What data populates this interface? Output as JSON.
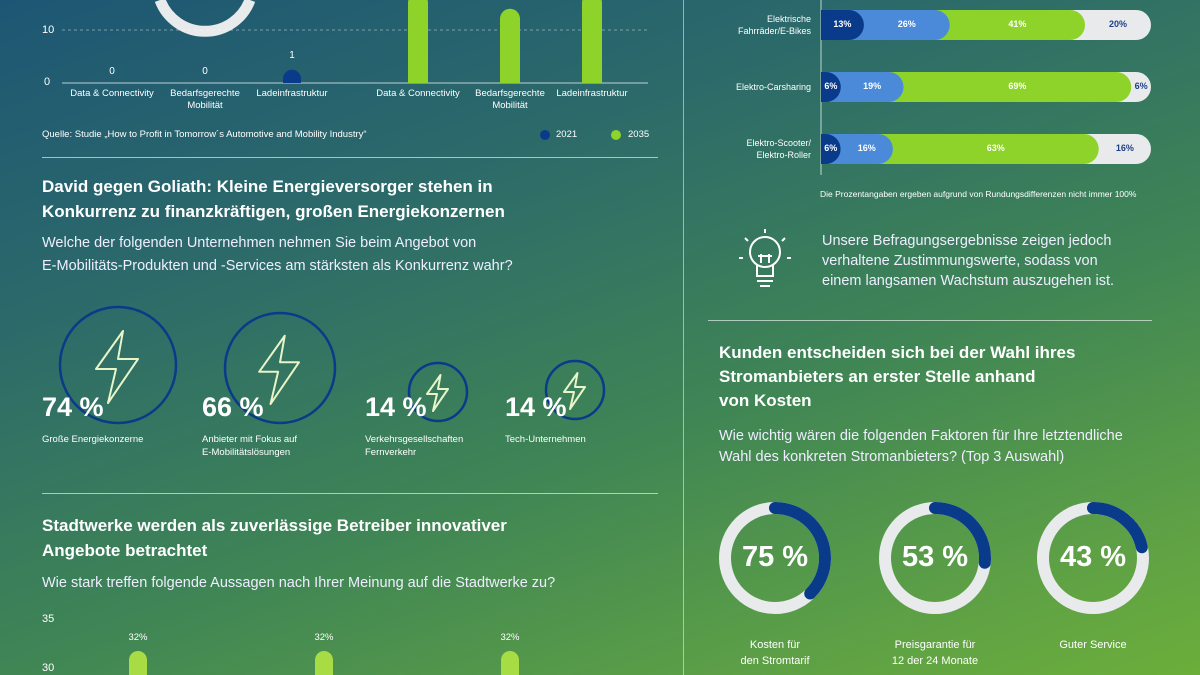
{
  "colors": {
    "dark_blue": "#0a3a8a",
    "mid_blue": "#4a8ad8",
    "green": "#8ed32a",
    "light": "#e8eaec",
    "year_2021": "#0a3a8a",
    "year_2035": "#8ed32a"
  },
  "top_chart": {
    "source": "Quelle: Studie „How to Profit in Tomorrow´s Automotive and Mobility Industry“",
    "legend": [
      "2021",
      "2035"
    ]
  },
  "section1": {
    "title_lines": [
      "David gegen Goliath: Kleine Energieversorger stehen in",
      "Konkurrenz zu finanzkräftigen, großen Energiekonzernen"
    ],
    "question_lines": [
      "Welche der folgenden Unternehmen nehmen Sie beim Angebot von",
      "E-Mobilitäts-Produkten und -Services am stärksten als Konkurrenz wahr?"
    ],
    "items": [
      {
        "value": "74 %",
        "label": [
          "Große Energiekonzerne"
        ],
        "icon": "lightning-icon"
      },
      {
        "value": "66 %",
        "label": [
          "Anbieter mit Fokus auf",
          "E-Mobilitätslösungen"
        ],
        "icon": "lightning-icon"
      },
      {
        "value": "14 %",
        "label": [
          "Verkehrsgesellschaften",
          "Fernverkehr"
        ],
        "icon": "lightning-icon"
      },
      {
        "value": "14 %",
        "label": [
          "Tech-Unternehmen"
        ],
        "icon": "lightning-icon"
      }
    ]
  },
  "section2": {
    "title_lines": [
      "Stadtwerke werden als zuverlässige Betreiber innovativer",
      "Angebote betrachtet"
    ],
    "question": "Wie stark treffen folgende Aussagen nach Ihrer Meinung auf die Stadtwerke zu?"
  },
  "right": {
    "note": "Die Prozentangaben ergeben aufgrund von Rundungsdifferenzen nicht immer 100%",
    "insight_lines": [
      "Unsere Befragungsergebnisse zeigen jedoch",
      "verhaltene Zustimmungswerte, sodass von",
      "einem langsamen Wachstum auszugehen ist."
    ],
    "insight_icon": "lightbulb-icon",
    "section3": {
      "title_lines": [
        "Kunden entscheiden sich bei der Wahl ihres",
        "Stromanbieters an erster Stelle anhand",
        "von Kosten"
      ],
      "question_lines": [
        "Wie wichtig wären die folgenden Faktoren für Ihre letztendliche",
        "Wahl des konkreten Stromanbieters? (Top 3 Auswahl)"
      ]
    }
  },
  "chart_data": [
    {
      "type": "bar",
      "yticks": [
        0,
        10
      ],
      "grid": true,
      "legend": "bottom-right",
      "categories": [
        "Data & Connectivity",
        "Bedarfsgerechte Mobilität",
        "Ladeinfrastruktur"
      ],
      "series": [
        {
          "name": "2021",
          "values": [
            0,
            0,
            1
          ],
          "labels": [
            "0",
            "0",
            "1"
          ]
        },
        {
          "name": "2035",
          "values": [
            17,
            14,
            17
          ]
        }
      ]
    },
    {
      "type": "bar",
      "stacked": true,
      "orientation": "horizontal",
      "categories": [
        [
          "Elektrische",
          "Fahrräder/E-Bikes"
        ],
        [
          "Elektro-Carsharing"
        ],
        [
          "Elektro-Scooter/",
          "Elektro-Roller"
        ]
      ],
      "series": [
        {
          "values": [
            13,
            6,
            6
          ]
        },
        {
          "values": [
            26,
            19,
            16
          ]
        },
        {
          "values": [
            41,
            69,
            63
          ]
        },
        {
          "values": [
            20,
            6,
            16
          ]
        }
      ]
    },
    {
      "type": "bar",
      "yticks": [
        30,
        35
      ],
      "values": [
        32,
        32,
        32
      ],
      "labels": [
        "32%",
        "32%",
        "32%"
      ]
    },
    {
      "type": "pie",
      "style": "donut",
      "values": [
        75,
        53,
        43
      ],
      "labels": [
        "75 %",
        "53 %",
        "43 %"
      ],
      "categories": [
        [
          "Kosten für",
          "den Stromtarif"
        ],
        [
          "Preisgarantie für",
          "12 der 24 Monate"
        ],
        [
          "Guter Service"
        ]
      ]
    }
  ]
}
